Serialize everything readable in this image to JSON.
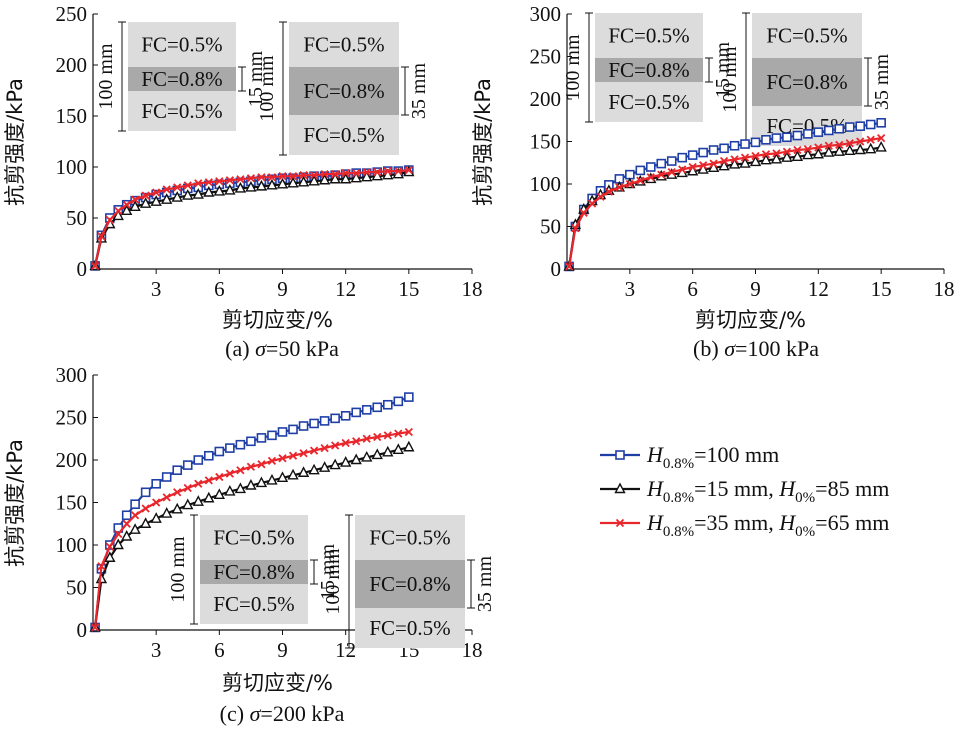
{
  "figure": {
    "legend": [
      {
        "series_index": 0,
        "parts": [
          {
            "t": "H",
            "i": true
          },
          {
            "t": "0.8%",
            "sub": true
          },
          {
            "t": "=100 mm"
          }
        ]
      },
      {
        "series_index": 1,
        "parts": [
          {
            "t": "H",
            "i": true
          },
          {
            "t": "0.8%",
            "sub": true
          },
          {
            "t": "=15 mm, "
          },
          {
            "t": "H",
            "i": true
          },
          {
            "t": "0%",
            "sub": true
          },
          {
            "t": "=85 mm"
          }
        ]
      },
      {
        "series_index": 2,
        "parts": [
          {
            "t": "H",
            "i": true
          },
          {
            "t": "0.8%",
            "sub": true
          },
          {
            "t": "=35 mm, "
          },
          {
            "t": "H",
            "i": true
          },
          {
            "t": "0%",
            "sub": true
          },
          {
            "t": "=65 mm"
          }
        ]
      }
    ],
    "inset": {
      "left_panel": {
        "labels": [
          "FC=0.5%",
          "FC=0.8%",
          "FC=0.5%"
        ],
        "dims": [
          "100 mm",
          "15 mm"
        ]
      },
      "right_panel": {
        "labels": [
          "FC=0.5%",
          "FC=0.8%",
          "FC=0.5%"
        ],
        "dims": [
          "100 mm",
          "35 mm"
        ]
      }
    },
    "colors": {
      "blue": "#1f3fa6",
      "black": "#111111",
      "red": "#e8262b",
      "box_light": "#dcdcdc",
      "box_dark": "#a9a9a9"
    }
  },
  "chart_data": [
    {
      "type": "line",
      "panel": "a",
      "caption": [
        "(a) ",
        "σ",
        "=50 kPa"
      ],
      "xlabel": "剪切应变/%",
      "ylabel": "抗剪强度/kPa",
      "xlim": [
        0,
        18
      ],
      "ylim": [
        0,
        250
      ],
      "xticks": [
        3,
        6,
        9,
        12,
        15,
        18
      ],
      "yticks": [
        0,
        50,
        100,
        150,
        200,
        250
      ],
      "grid": false,
      "series": [
        {
          "color": "blue",
          "marker": "square",
          "x": [
            0.1,
            0.4,
            0.8,
            1.2,
            1.6,
            2.0,
            2.5,
            3.0,
            3.5,
            4.0,
            4.5,
            5.0,
            5.5,
            6.0,
            6.5,
            7.0,
            7.5,
            8.0,
            8.5,
            9.0,
            9.5,
            10.0,
            10.5,
            11.0,
            11.5,
            12.0,
            12.5,
            13.0,
            13.5,
            14.0,
            14.5,
            15.0
          ],
          "y": [
            3,
            33,
            50,
            58,
            63,
            67,
            70,
            73,
            75,
            77,
            79,
            80,
            82,
            83,
            84,
            85,
            86,
            87,
            88,
            89,
            89,
            90,
            91,
            91,
            92,
            93,
            94,
            94,
            95,
            96,
            96,
            97
          ]
        },
        {
          "color": "black",
          "marker": "triangle",
          "x": [
            0.1,
            0.4,
            0.8,
            1.2,
            1.6,
            2.0,
            2.5,
            3.0,
            3.5,
            4.0,
            4.5,
            5.0,
            5.5,
            6.0,
            6.5,
            7.0,
            7.5,
            8.0,
            8.5,
            9.0,
            9.5,
            10.0,
            10.5,
            11.0,
            11.5,
            12.0,
            12.5,
            13.0,
            13.5,
            14.0,
            14.5,
            15.0
          ],
          "y": [
            3,
            30,
            44,
            52,
            57,
            61,
            64,
            66,
            68,
            70,
            72,
            73,
            75,
            76,
            77,
            79,
            80,
            81,
            82,
            83,
            84,
            85,
            86,
            87,
            88,
            88,
            89,
            90,
            91,
            92,
            93,
            95
          ]
        },
        {
          "color": "red",
          "marker": "x",
          "x": [
            0.1,
            0.4,
            0.8,
            1.2,
            1.6,
            2.0,
            2.5,
            3.0,
            3.5,
            4.0,
            4.5,
            5.0,
            5.5,
            6.0,
            6.5,
            7.0,
            7.5,
            8.0,
            8.5,
            9.0,
            9.5,
            10.0,
            10.5,
            11.0,
            11.5,
            12.0,
            12.5,
            13.0,
            13.5,
            14.0,
            14.5,
            15.0
          ],
          "y": [
            3,
            32,
            48,
            57,
            63,
            68,
            72,
            75,
            78,
            80,
            82,
            84,
            85,
            86,
            87,
            88,
            89,
            90,
            90,
            91,
            91,
            92,
            92,
            93,
            93,
            94,
            94,
            95,
            95,
            96,
            96,
            97
          ]
        }
      ]
    },
    {
      "type": "line",
      "panel": "b",
      "caption": [
        "(b) ",
        "σ",
        "=100 kPa"
      ],
      "xlabel": "剪切应变/%",
      "ylabel": "抗剪强度/kPa",
      "xlim": [
        0,
        18
      ],
      "ylim": [
        0,
        300
      ],
      "xticks": [
        3,
        6,
        9,
        12,
        15,
        18
      ],
      "yticks": [
        0,
        50,
        100,
        150,
        200,
        250,
        300
      ],
      "grid": false,
      "series": [
        {
          "color": "blue",
          "marker": "square",
          "x": [
            0.1,
            0.4,
            0.8,
            1.2,
            1.6,
            2.0,
            2.5,
            3.0,
            3.5,
            4.0,
            4.5,
            5.0,
            5.5,
            6.0,
            6.5,
            7.0,
            7.5,
            8.0,
            8.5,
            9.0,
            9.5,
            10.0,
            10.5,
            11.0,
            11.5,
            12.0,
            12.5,
            13.0,
            13.5,
            14.0,
            14.5,
            15.0
          ],
          "y": [
            3,
            50,
            70,
            83,
            92,
            99,
            106,
            111,
            116,
            120,
            124,
            127,
            131,
            134,
            137,
            140,
            142,
            145,
            147,
            149,
            152,
            154,
            155,
            157,
            159,
            161,
            163,
            165,
            167,
            168,
            170,
            172
          ]
        },
        {
          "color": "black",
          "marker": "triangle",
          "x": [
            0.1,
            0.4,
            0.8,
            1.2,
            1.6,
            2.0,
            2.5,
            3.0,
            3.5,
            4.0,
            4.5,
            5.0,
            5.5,
            6.0,
            6.5,
            7.0,
            7.5,
            8.0,
            8.5,
            9.0,
            9.5,
            10.0,
            10.5,
            11.0,
            11.5,
            12.0,
            12.5,
            13.0,
            13.5,
            14.0,
            14.5,
            15.0
          ],
          "y": [
            3,
            52,
            70,
            80,
            87,
            92,
            96,
            100,
            103,
            106,
            109,
            111,
            113,
            115,
            117,
            119,
            121,
            123,
            124,
            126,
            128,
            129,
            131,
            132,
            134,
            135,
            137,
            138,
            139,
            140,
            141,
            143
          ]
        },
        {
          "color": "red",
          "marker": "x",
          "x": [
            0.1,
            0.4,
            0.8,
            1.2,
            1.6,
            2.0,
            2.5,
            3.0,
            3.5,
            4.0,
            4.5,
            5.0,
            5.5,
            6.0,
            6.5,
            7.0,
            7.5,
            8.0,
            8.5,
            9.0,
            9.5,
            10.0,
            10.5,
            11.0,
            11.5,
            12.0,
            12.5,
            13.0,
            13.5,
            14.0,
            14.5,
            15.0
          ],
          "y": [
            3,
            48,
            66,
            77,
            85,
            91,
            96,
            100,
            104,
            108,
            111,
            114,
            117,
            120,
            122,
            124,
            127,
            129,
            131,
            133,
            135,
            136,
            138,
            140,
            141,
            143,
            145,
            146,
            148,
            150,
            152,
            154
          ]
        }
      ]
    },
    {
      "type": "line",
      "panel": "c",
      "caption": [
        "(c) ",
        "σ",
        "=200 kPa"
      ],
      "xlabel": "剪切应变/%",
      "ylabel": "抗剪强度/kPa",
      "xlim": [
        0,
        18
      ],
      "ylim": [
        0,
        300
      ],
      "xticks": [
        3,
        6,
        9,
        12,
        15,
        18
      ],
      "yticks": [
        0,
        50,
        100,
        150,
        200,
        250,
        300
      ],
      "grid": false,
      "series": [
        {
          "color": "blue",
          "marker": "square",
          "x": [
            0.1,
            0.4,
            0.8,
            1.2,
            1.6,
            2.0,
            2.5,
            3.0,
            3.5,
            4.0,
            4.5,
            5.0,
            5.5,
            6.0,
            6.5,
            7.0,
            7.5,
            8.0,
            8.5,
            9.0,
            9.5,
            10.0,
            10.5,
            11.0,
            11.5,
            12.0,
            12.5,
            13.0,
            13.5,
            14.0,
            14.5,
            15.0
          ],
          "y": [
            3,
            72,
            100,
            120,
            135,
            148,
            162,
            172,
            180,
            188,
            194,
            200,
            205,
            210,
            214,
            218,
            222,
            226,
            229,
            233,
            236,
            240,
            243,
            246,
            249,
            252,
            256,
            259,
            262,
            265,
            269,
            274
          ]
        },
        {
          "color": "black",
          "marker": "triangle",
          "x": [
            0.1,
            0.4,
            0.8,
            1.2,
            1.6,
            2.0,
            2.5,
            3.0,
            3.5,
            4.0,
            4.5,
            5.0,
            5.5,
            6.0,
            6.5,
            7.0,
            7.5,
            8.0,
            8.5,
            9.0,
            9.5,
            10.0,
            10.5,
            11.0,
            11.5,
            12.0,
            12.5,
            13.0,
            13.5,
            14.0,
            14.5,
            15.0
          ],
          "y": [
            3,
            60,
            85,
            100,
            110,
            118,
            125,
            131,
            137,
            142,
            147,
            151,
            155,
            159,
            163,
            166,
            170,
            173,
            176,
            179,
            182,
            185,
            188,
            191,
            194,
            197,
            200,
            203,
            206,
            209,
            212,
            215
          ]
        },
        {
          "color": "red",
          "marker": "x",
          "x": [
            0.1,
            0.4,
            0.8,
            1.2,
            1.6,
            2.0,
            2.5,
            3.0,
            3.5,
            4.0,
            4.5,
            5.0,
            5.5,
            6.0,
            6.5,
            7.0,
            7.5,
            8.0,
            8.5,
            9.0,
            9.5,
            10.0,
            10.5,
            11.0,
            11.5,
            12.0,
            12.5,
            13.0,
            13.5,
            14.0,
            14.5,
            15.0
          ],
          "y": [
            3,
            75,
            98,
            113,
            125,
            135,
            143,
            150,
            156,
            162,
            167,
            172,
            176,
            180,
            184,
            188,
            192,
            195,
            199,
            202,
            205,
            208,
            211,
            214,
            217,
            220,
            222,
            225,
            227,
            229,
            231,
            233
          ]
        }
      ]
    }
  ]
}
